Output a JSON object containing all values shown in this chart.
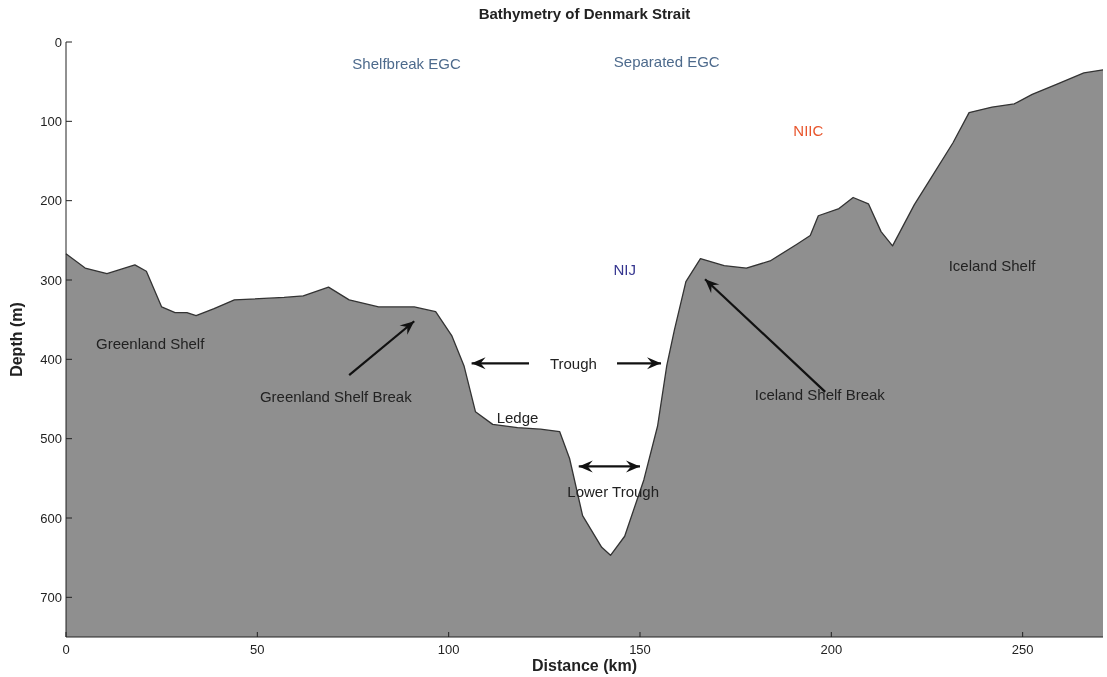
{
  "chart_data": {
    "type": "line",
    "title": "Bathymetry of Denmark Strait",
    "xlabel": "Distance (km)",
    "ylabel": "Depth (m)",
    "x": [
      0,
      5,
      10.7,
      18,
      21,
      25,
      28.5,
      31.6,
      34,
      38.7,
      44,
      57,
      62,
      68.6,
      74,
      81.7,
      91,
      96.6,
      100.8,
      104,
      107,
      111.5,
      118,
      124,
      129,
      131.6,
      135,
      140,
      142.3,
      146,
      151,
      154.6,
      157,
      159,
      162,
      165.8,
      172,
      177.8,
      184,
      191,
      194.5,
      196.6,
      202,
      205.7,
      209.7,
      213,
      216,
      221.7,
      226,
      231.8,
      236,
      242,
      247.8,
      252.5,
      259,
      266,
      271
    ],
    "series": [
      {
        "color": "#333333",
        "values": [
          267,
          285,
          292,
          281,
          289,
          334,
          341,
          341,
          345,
          336,
          325,
          322,
          320,
          309,
          325,
          334,
          334,
          340,
          370,
          408,
          466,
          482,
          486,
          488,
          491,
          525,
          597,
          637,
          647,
          623,
          552,
          484,
          408,
          363,
          302,
          273,
          282,
          285,
          276,
          255,
          244,
          219,
          210,
          196,
          204,
          239,
          257,
          205,
          172,
          127,
          89,
          82,
          78,
          66,
          53,
          39,
          35
        ],
        "lower": [
          267,
          285,
          292,
          281,
          289,
          334,
          341,
          341,
          345,
          336,
          325,
          322,
          320,
          309,
          325,
          334,
          334,
          340,
          370,
          408,
          466,
          482,
          486,
          488,
          491,
          525,
          597,
          637,
          647,
          623,
          552,
          484,
          408,
          363,
          302,
          273,
          282,
          285,
          276,
          255,
          244,
          219,
          210,
          196,
          204,
          239,
          257,
          205,
          172,
          127,
          89,
          82,
          78,
          66,
          53,
          39,
          35
        ],
        "upper": [
          750,
          750,
          750,
          750,
          750,
          750,
          750,
          750,
          750,
          750,
          750,
          750,
          750,
          750,
          750,
          750,
          750,
          750,
          750,
          750,
          750,
          750,
          750,
          750,
          750,
          750,
          750,
          750,
          750,
          750,
          750,
          750,
          750,
          750,
          750,
          750,
          750,
          750,
          750,
          750,
          750,
          750,
          750,
          750,
          750,
          750,
          750,
          750,
          750,
          750,
          750,
          750,
          750,
          750,
          750,
          750,
          750
        ]
      }
    ],
    "xlim": [
      0,
      271
    ],
    "xticks": [
      0,
      50,
      100,
      150,
      200,
      250
    ],
    "ylim": [
      750,
      0
    ],
    "yticks": [
      0,
      100,
      200,
      300,
      400,
      500,
      600,
      700
    ],
    "annotations": [
      "Shelfbreak EGC",
      "Separated EGC",
      "NIIC",
      "NIJ",
      "Iceland Shelf",
      "Greenland Shelf",
      "Greenland Shelf Break",
      "Ledge",
      "Trough",
      "Lower Trough",
      "Iceland Shelf Break"
    ]
  }
}
